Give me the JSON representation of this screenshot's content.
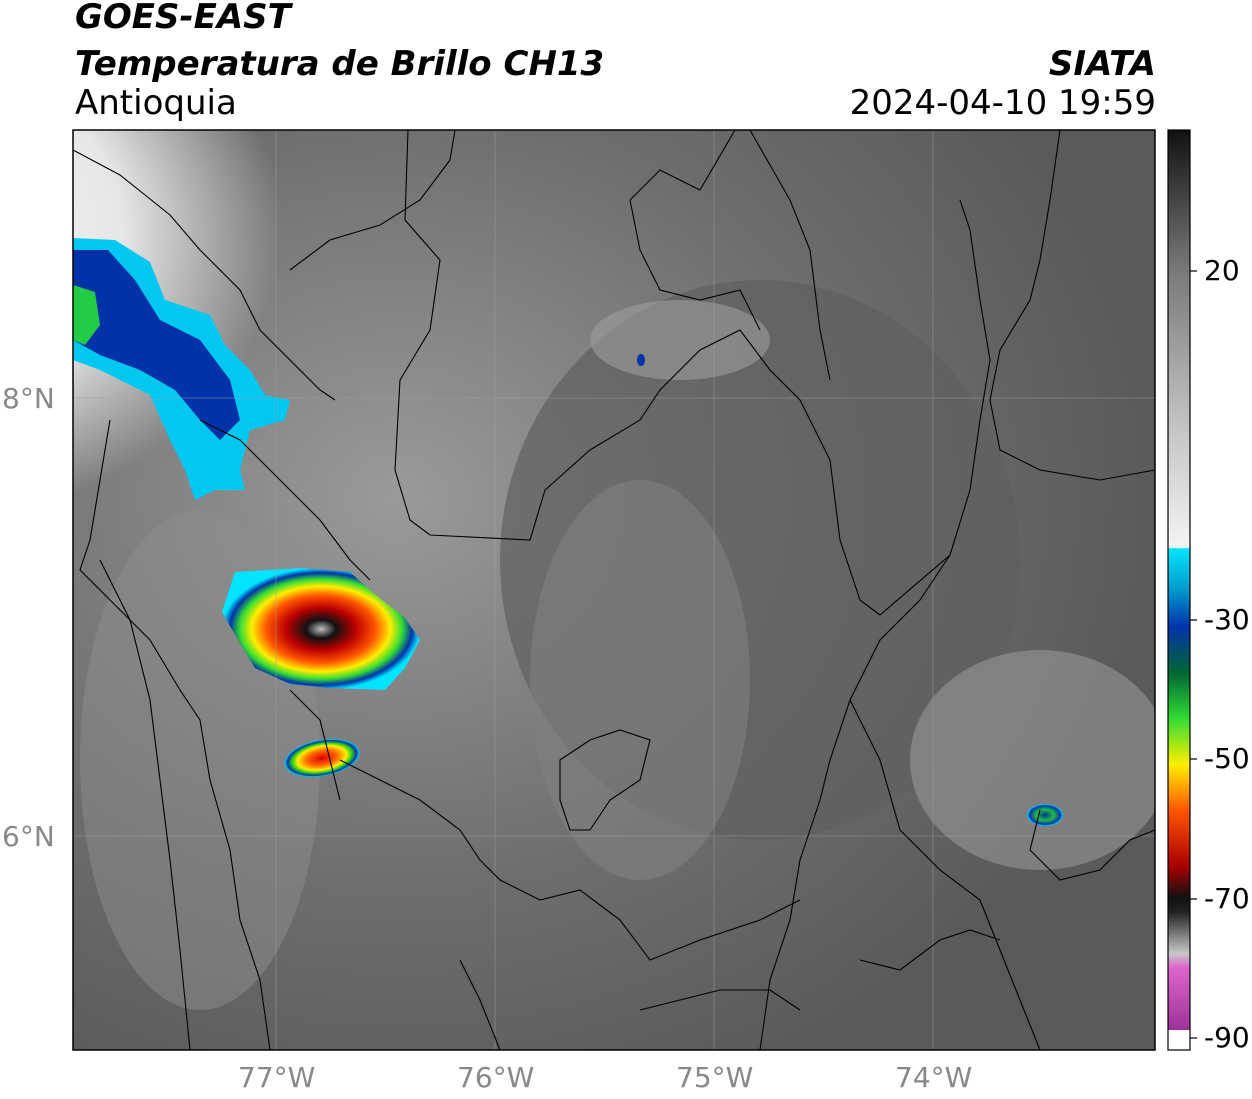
{
  "header": {
    "title_line1": "GOES-EAST",
    "title_line2": "Temperatura de Brillo CH13",
    "region": "Antioquia",
    "organization": "SIATA",
    "datetime": "2024-04-10 19:59"
  },
  "map": {
    "x_ticks": [
      "77°W",
      "76°W",
      "75°W",
      "74°W"
    ],
    "y_ticks": [
      "8°N",
      "6°N"
    ]
  },
  "colorbar": {
    "ticks": [
      "20",
      "-30",
      "-50",
      "-70",
      "-90"
    ],
    "colors": {
      "warm_gray_dark": "#1a1a1a",
      "cyan": "#00e5ff",
      "blue": "#0033aa",
      "green": "#00cc33",
      "yellow": "#ffee00",
      "red": "#dd0000",
      "black": "#111111",
      "magenta": "#cc44cc",
      "purple": "#882288"
    }
  }
}
